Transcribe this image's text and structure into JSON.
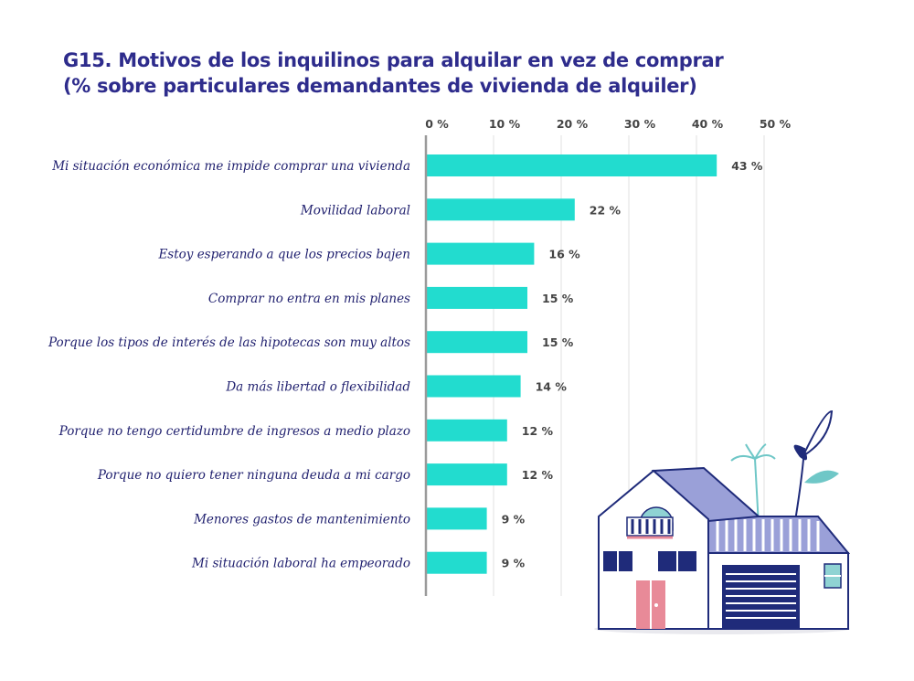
{
  "title": {
    "line1": "G15. Motivos de los inquilinos para alquilar en vez de comprar",
    "line2": "(% sobre particulares demandantes de vivienda de alquiler)"
  },
  "colors": {
    "bar": "#22dccf",
    "title": "#2e2c8c",
    "grid": "#e2e2e2",
    "axis": "#9a9a9a",
    "label": "#1f1f6e"
  },
  "chart_data": {
    "type": "bar",
    "orientation": "horizontal",
    "title": "G15. Motivos de los inquilinos para alquilar en vez de comprar (% sobre particulares demandantes de vivienda de alquiler)",
    "xlim": [
      0,
      50
    ],
    "ticks": [
      0,
      10,
      20,
      30,
      40,
      50
    ],
    "tick_labels": [
      "0 %",
      "10 %",
      "20 %",
      "30 %",
      "40 %",
      "50 %"
    ],
    "x_axis_position": "top",
    "grid": true,
    "categories": [
      "Mi situación económica me impide comprar una vivienda",
      "Movilidad laboral",
      "Estoy esperando a que los precios bajen",
      "Comprar no entra en mis planes",
      "Porque los tipos de interés de las hipotecas son muy altos",
      "Da más libertad o flexibilidad",
      "Porque no tengo certidumbre de ingresos a medio plazo",
      "Porque no quiero tener ninguna deuda a mi cargo",
      "Menores gastos de mantenimiento",
      "Mi situación laboral ha empeorado"
    ],
    "values": [
      43,
      22,
      16,
      15,
      15,
      14,
      12,
      12,
      9,
      9
    ],
    "value_labels": [
      "43 %",
      "22 %",
      "16 %",
      "15 %",
      "15 %",
      "14 %",
      "12 %",
      "12 %",
      "9 %",
      "9 %"
    ]
  }
}
